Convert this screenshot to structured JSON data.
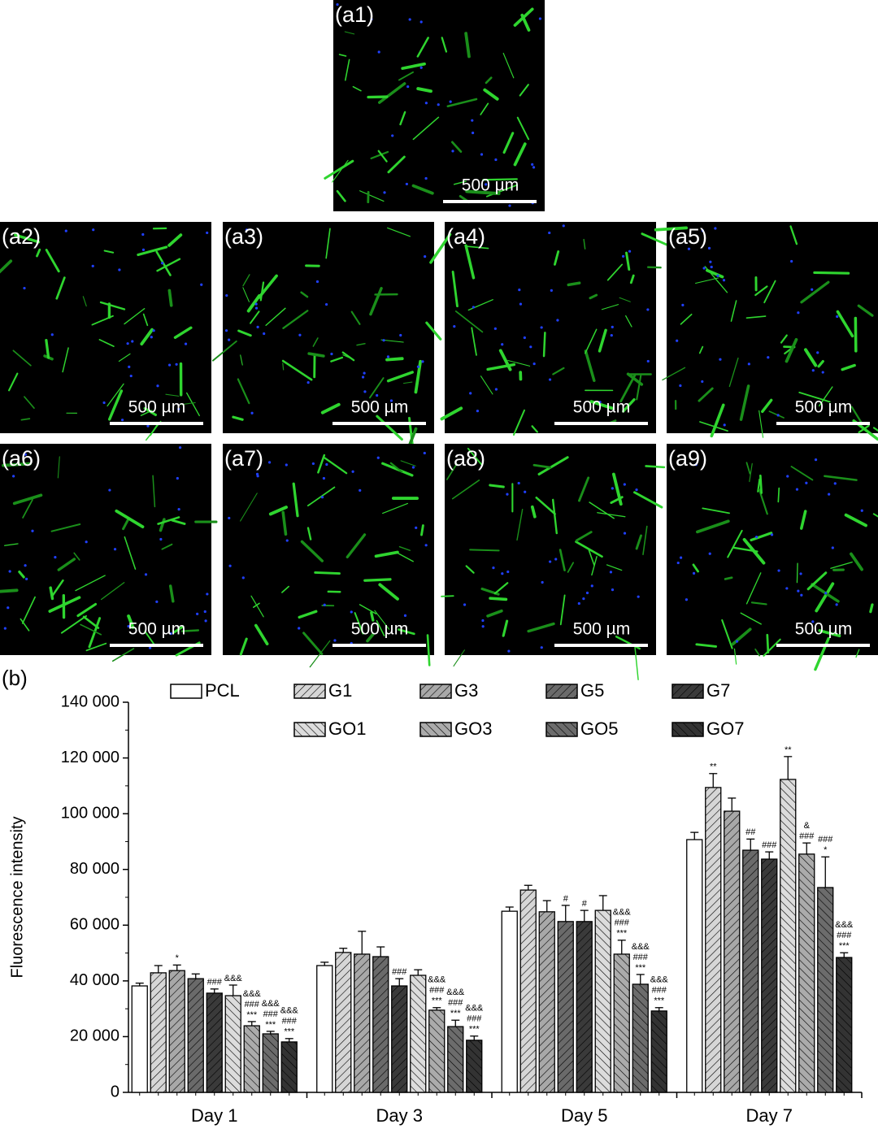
{
  "panels": [
    {
      "label": "(a1)",
      "scale": "500 µm"
    },
    {
      "label": "(a2)",
      "scale": "500 µm"
    },
    {
      "label": "(a3)",
      "scale": "500 µm"
    },
    {
      "label": "(a4)",
      "scale": "500 µm"
    },
    {
      "label": "(a5)",
      "scale": "500 µm"
    },
    {
      "label": "(a6)",
      "scale": "500 µm"
    },
    {
      "label": "(a7)",
      "scale": "500 µm"
    },
    {
      "label": "(a8)",
      "scale": "500 µm"
    },
    {
      "label": "(a9)",
      "scale": "500 µm"
    }
  ],
  "chart_data": {
    "type": "bar",
    "title": "(b)",
    "y_label": "Fluorescence intensity",
    "categories": [
      "Day 1",
      "Day 3",
      "Day 5",
      "Day 7"
    ],
    "ylim": [
      0,
      140000
    ],
    "yticks": [
      0,
      {
        "value": 20000,
        "label": "20 000"
      },
      {
        "value": 40000,
        "label": "40 000"
      },
      {
        "value": 60000,
        "label": "60 000"
      },
      {
        "value": 80000,
        "label": "80 000"
      },
      {
        "value": 100000,
        "label": "100 000"
      },
      {
        "value": 120000,
        "label": "120 000"
      },
      {
        "value": 140000,
        "label": "140 000"
      }
    ],
    "series": [
      {
        "name": "PCL",
        "color": "#ffffff",
        "values": [
          38200,
          45500,
          65000,
          90700
        ],
        "errors": [
          1000,
          1200,
          1500,
          2600
        ],
        "annotations": [
          null,
          null,
          null,
          null
        ]
      },
      {
        "name": "G1",
        "color": "#d6d6d6",
        "hatch": "/",
        "values": [
          42900,
          50200,
          72600,
          109400
        ],
        "errors": [
          2600,
          1500,
          1700,
          5000
        ],
        "annotations": [
          null,
          null,
          null,
          [
            "**"
          ]
        ]
      },
      {
        "name": "G3",
        "color": "#a8a8a8",
        "hatch": "/",
        "values": [
          43700,
          49600,
          64800,
          100900
        ],
        "errors": [
          2000,
          8200,
          4000,
          4700
        ],
        "annotations": [
          [
            "*"
          ],
          null,
          null,
          null
        ]
      },
      {
        "name": "G5",
        "color": "#6a6a6a",
        "hatch": "/",
        "values": [
          40800,
          48700,
          61300,
          86900
        ],
        "errors": [
          1700,
          3500,
          5800,
          4000
        ],
        "annotations": [
          null,
          null,
          [
            "#"
          ],
          [
            "##"
          ]
        ]
      },
      {
        "name": "G7",
        "color": "#3a3a3a",
        "hatch": "/",
        "values": [
          35600,
          38200,
          61300,
          83700
        ],
        "errors": [
          1500,
          2600,
          4000,
          2600
        ],
        "annotations": [
          [
            "###"
          ],
          [
            "###"
          ],
          [
            "#"
          ],
          [
            "###"
          ]
        ]
      },
      {
        "name": "GO1",
        "color": "#dcdcdc",
        "hatch": "\\",
        "values": [
          34700,
          42000,
          65300,
          112300
        ],
        "errors": [
          3800,
          2000,
          5300,
          8200
        ],
        "annotations": [
          [
            "&&&"
          ],
          null,
          null,
          [
            "**"
          ]
        ]
      },
      {
        "name": "GO3",
        "color": "#ababab",
        "hatch": "\\",
        "values": [
          23900,
          29500,
          49600,
          85500
        ],
        "errors": [
          1500,
          900,
          5000,
          4000
        ],
        "annotations": [
          [
            "&&&",
            "###",
            "***"
          ],
          [
            "&&&",
            "###",
            "***"
          ],
          [
            "&&&",
            "###",
            "***"
          ],
          [
            "&",
            "###"
          ]
        ]
      },
      {
        "name": "GO5",
        "color": "#6c6c6c",
        "hatch": "\\",
        "values": [
          21000,
          23600,
          38800,
          73500
        ],
        "errors": [
          900,
          2300,
          3500,
          11000
        ],
        "annotations": [
          [
            "&&&",
            "###",
            "***"
          ],
          [
            "&&&",
            "###",
            "***"
          ],
          [
            "&&&",
            "###",
            "***"
          ],
          [
            "###",
            "*"
          ]
        ]
      },
      {
        "name": "GO7",
        "color": "#333333",
        "hatch": "\\",
        "values": [
          18100,
          18700,
          29200,
          48400
        ],
        "errors": [
          1200,
          1500,
          1200,
          1700
        ],
        "annotations": [
          [
            "&&&",
            "###",
            "***"
          ],
          [
            "&&&",
            "###",
            "***"
          ],
          [
            "&&&",
            "###",
            "***"
          ],
          [
            "&&&",
            "###",
            "***"
          ]
        ]
      }
    ]
  }
}
